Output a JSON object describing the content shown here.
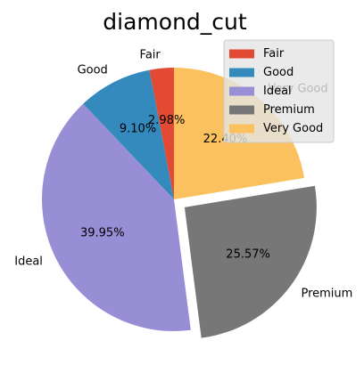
{
  "chart_data": {
    "type": "pie",
    "title": "diamond_cut",
    "categories": [
      "Fair",
      "Good",
      "Ideal",
      "Premium",
      "Very Good"
    ],
    "values": [
      2.98,
      9.1,
      39.95,
      25.57,
      22.4
    ],
    "value_labels": [
      "2.98%",
      "9.10%",
      "39.95%",
      "25.57%",
      "22.40%"
    ],
    "colors": [
      "#E24A33",
      "#348ABD",
      "#988ED5",
      "#777777",
      "#FBC15E"
    ],
    "exploded": [
      "Premium"
    ],
    "start_angle_deg": 90,
    "direction": "counterclockwise",
    "legend_placement": "top-right",
    "legend": [
      "Fair",
      "Good",
      "Ideal",
      "Premium",
      "Very Good"
    ]
  }
}
